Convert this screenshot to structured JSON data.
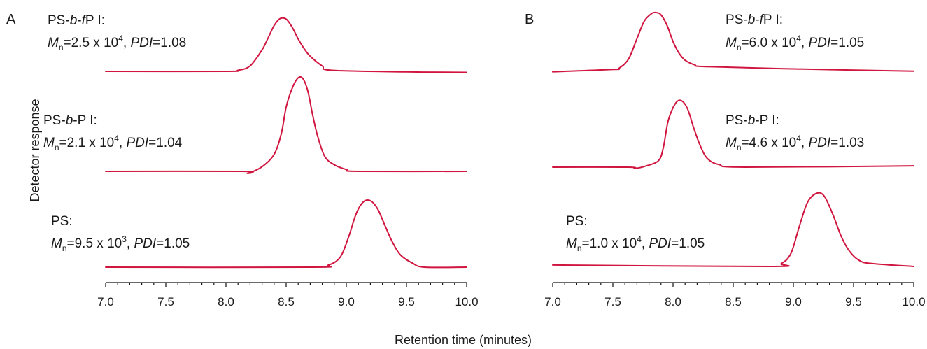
{
  "figure": {
    "ylabel": "Detector response",
    "xlabel": "Retention time (minutes)",
    "trace_color": "#d0163f"
  },
  "chart_data": [
    {
      "type": "line",
      "panel": "A",
      "xlim": [
        7.0,
        10.0
      ],
      "x_ticks": [
        "7.0",
        "7.5",
        "8.0",
        "8.5",
        "9.0",
        "9.5",
        "10.0"
      ],
      "series": [
        {
          "label": {
            "name": "PS-b-fP I:",
            "mn_text": "=2.5 x 10",
            "mn_exp": "4",
            "pdi_text": "=1.08"
          },
          "x": [
            7.0,
            8.0,
            8.1,
            8.2,
            8.3,
            8.35,
            8.4,
            8.45,
            8.5,
            8.55,
            8.6,
            8.65,
            8.7,
            8.8,
            8.88,
            9.5,
            10.0
          ],
          "y": [
            0.0,
            0.0,
            0.02,
            0.1,
            0.4,
            0.62,
            0.85,
            0.98,
            0.97,
            0.82,
            0.6,
            0.42,
            0.28,
            0.1,
            0.02,
            -0.01,
            -0.02
          ]
        },
        {
          "label": {
            "name": "PS-b-P I:",
            "mn_text": "=2.1 x 10",
            "mn_exp": "4",
            "pdi_text": "=1.04"
          },
          "x": [
            7.0,
            8.13,
            8.18,
            8.3,
            8.4,
            8.46,
            8.5,
            8.55,
            8.6,
            8.64,
            8.68,
            8.72,
            8.76,
            8.82,
            8.9,
            9.0,
            9.1,
            10.0
          ],
          "y": [
            0.0,
            0.0,
            -0.02,
            0.05,
            0.18,
            0.4,
            0.68,
            0.88,
            0.99,
            0.98,
            0.85,
            0.6,
            0.38,
            0.16,
            0.07,
            0.02,
            0.0,
            0.0
          ]
        },
        {
          "label": {
            "name": "PS:",
            "mn_text": "=9.5 x 10",
            "mn_exp": "3",
            "pdi_text": "=1.05"
          },
          "x": [
            7.0,
            8.7,
            8.85,
            8.95,
            9.02,
            9.08,
            9.14,
            9.2,
            9.26,
            9.32,
            9.38,
            9.45,
            9.55,
            9.65,
            10.0
          ],
          "y": [
            0.0,
            0.0,
            0.03,
            0.15,
            0.45,
            0.78,
            0.96,
            0.98,
            0.86,
            0.62,
            0.38,
            0.18,
            0.06,
            0.0,
            0.0
          ]
        }
      ]
    },
    {
      "type": "line",
      "panel": "B",
      "xlim": [
        7.0,
        10.0
      ],
      "x_ticks": [
        "7.0",
        "7.5",
        "8.0",
        "8.5",
        "9.0",
        "9.5",
        "10.0"
      ],
      "series": [
        {
          "label": {
            "name": "PS-b-fP I:",
            "mn_text": "=6.0 x 10",
            "mn_exp": "4",
            "pdi_text": "=1.05"
          },
          "x": [
            7.0,
            7.5,
            7.55,
            7.63,
            7.7,
            7.76,
            7.82,
            7.86,
            7.9,
            7.95,
            8.0,
            8.05,
            8.1,
            8.18,
            8.27,
            9.0,
            10.0
          ],
          "y": [
            -0.02,
            0.02,
            0.04,
            0.2,
            0.55,
            0.85,
            0.98,
            1.0,
            0.96,
            0.78,
            0.5,
            0.3,
            0.18,
            0.1,
            0.07,
            0.03,
            -0.01
          ]
        },
        {
          "label": {
            "name": "PS-b-P I:",
            "mn_text": "=4.6 x 10",
            "mn_exp": "4",
            "pdi_text": "=1.03"
          },
          "x": [
            7.0,
            7.63,
            7.68,
            7.78,
            7.88,
            7.92,
            7.96,
            8.02,
            8.07,
            8.12,
            8.17,
            8.22,
            8.28,
            8.38,
            8.6,
            10.0
          ],
          "y": [
            0.0,
            0.0,
            -0.02,
            0.02,
            0.1,
            0.3,
            0.7,
            0.96,
            1.0,
            0.88,
            0.6,
            0.35,
            0.14,
            0.04,
            0.0,
            0.02
          ]
        },
        {
          "label": {
            "name": "PS:",
            "mn_text": "=1.0 x 10",
            "mn_exp": "4",
            "pdi_text": "=1.05"
          },
          "x": [
            7.0,
            8.8,
            8.9,
            8.98,
            9.05,
            9.12,
            9.2,
            9.26,
            9.33,
            9.4,
            9.47,
            9.55,
            9.65,
            10.0
          ],
          "y": [
            0.02,
            0.0,
            0.04,
            0.18,
            0.55,
            0.88,
            1.0,
            0.95,
            0.7,
            0.4,
            0.2,
            0.08,
            0.04,
            0.0
          ]
        }
      ]
    }
  ]
}
